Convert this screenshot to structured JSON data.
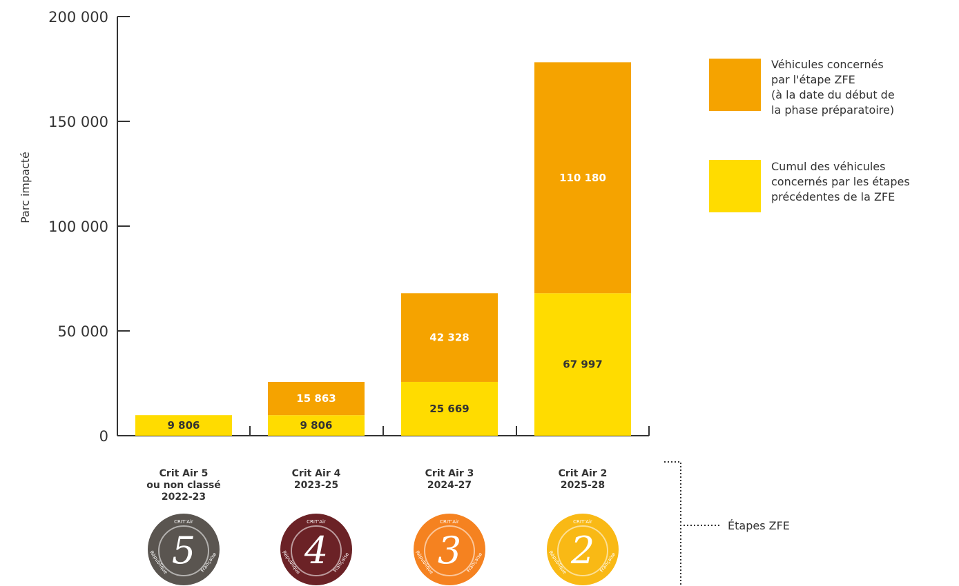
{
  "chart_data": {
    "type": "bar",
    "stacked": true,
    "ylabel": "Parc impacté",
    "ylim": [
      0,
      200000
    ],
    "yticks": [
      0,
      50000,
      100000,
      150000,
      200000
    ],
    "ytick_labels": [
      "0",
      "50 000",
      "100 000",
      "150 000",
      "200 000"
    ],
    "categories": [
      [
        "Crit Air 5",
        "ou non classé",
        "2022-23"
      ],
      [
        "Crit Air 4",
        "2023-25"
      ],
      [
        "Crit Air 3",
        "2024-27"
      ],
      [
        "Crit Air 2",
        "2025-28"
      ]
    ],
    "series": [
      {
        "name": "Cumul des véhicules concernés par les étapes précédentes de la ZFE",
        "legend_lines": [
          "Cumul des véhicules",
          "concernés par les étapes",
          "précédentes de la ZFE"
        ],
        "color": "#FFDC00",
        "values": [
          9806,
          9806,
          25669,
          67997
        ],
        "labels": [
          "9 806",
          "9 806",
          "25 669",
          "67 997"
        ]
      },
      {
        "name": "Véhicules concernés par l'étape ZFE (à la date du début de la phase préparatoire)",
        "legend_lines": [
          "Véhicules concernés",
          "par l'étape ZFE",
          "(à la date du début de",
          "la phase préparatoire)"
        ],
        "color": "#F5A300",
        "values": [
          0,
          15863,
          42328,
          110180
        ],
        "labels": [
          "",
          "15 863",
          "42 328",
          "110 180"
        ]
      }
    ],
    "legend_position": "top-right",
    "grid": false
  },
  "badges": [
    {
      "header": "CRIT'Air",
      "number": "5",
      "left": "République",
      "right": "Française",
      "color": "#5A5550"
    },
    {
      "header": "CRIT'Air",
      "number": "4",
      "left": "République",
      "right": "Française",
      "color": "#6B2226"
    },
    {
      "header": "CRIT'Air",
      "number": "3",
      "left": "République",
      "right": "Française",
      "color": "#F58220"
    },
    {
      "header": "CRIT'Air",
      "number": "2",
      "left": "République",
      "right": "Française",
      "color": "#F9B915"
    }
  ],
  "annotation": {
    "text": "Étapes ZFE"
  }
}
